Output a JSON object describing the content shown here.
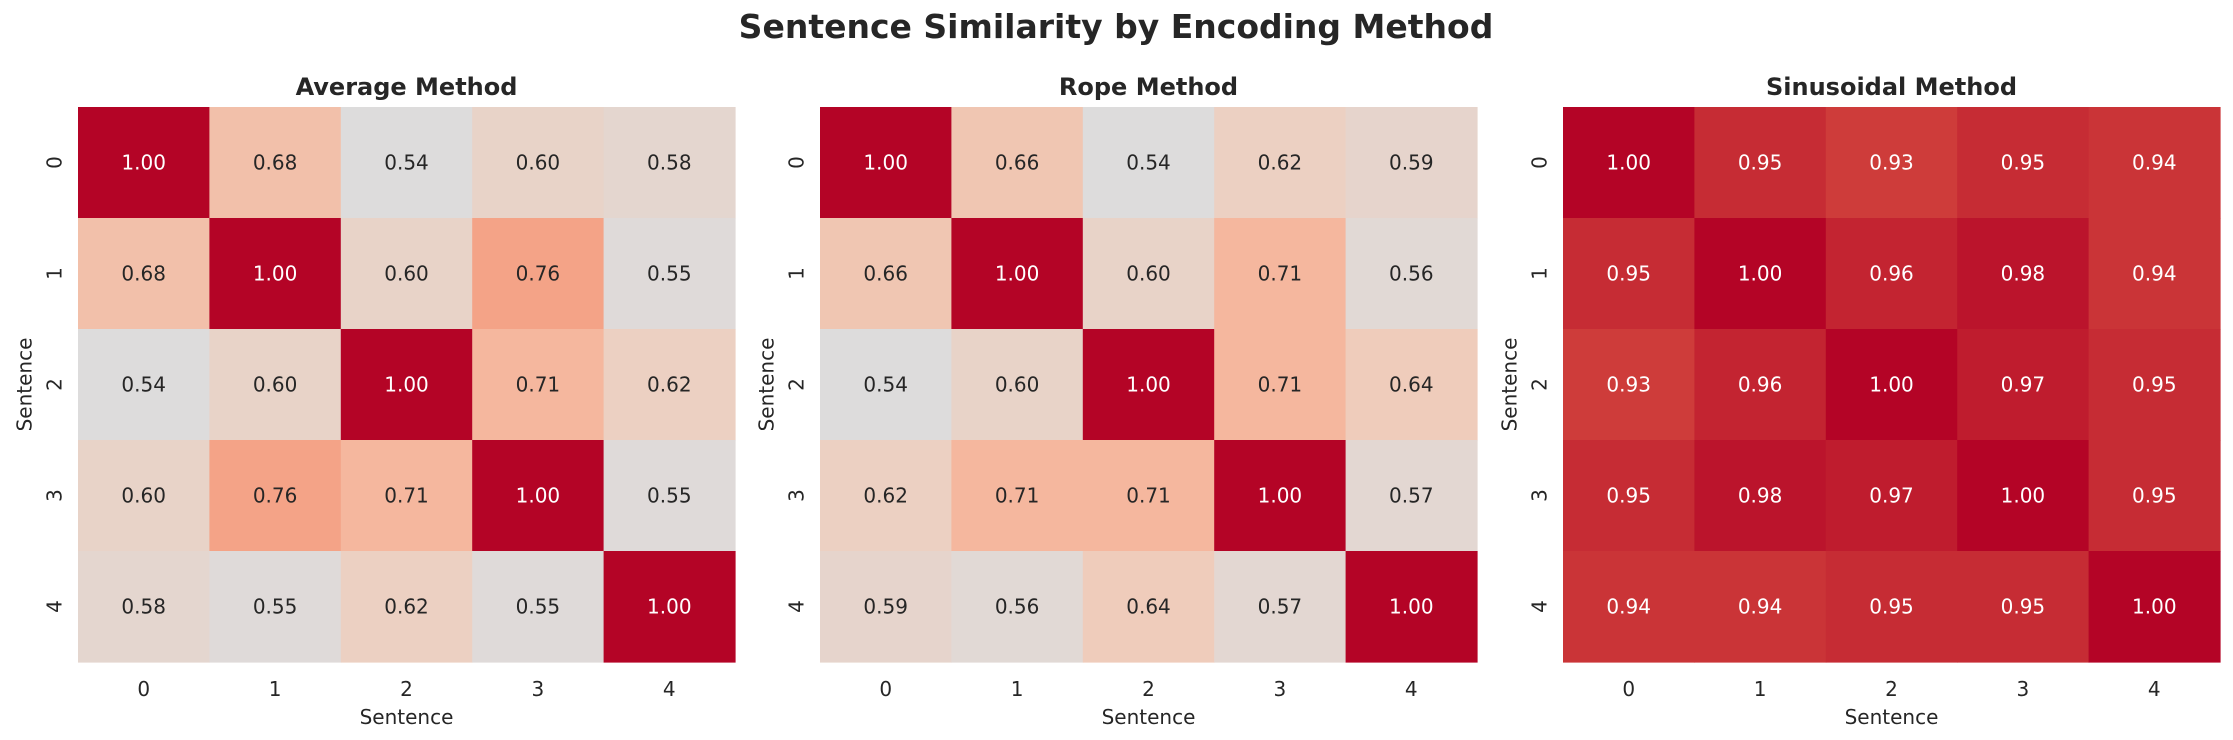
{
  "figure": {
    "title": "Sentence Similarity by Encoding Method"
  },
  "chart_data": [
    {
      "type": "heatmap",
      "title": "Average Method",
      "xlabel": "Sentence",
      "ylabel": "Sentence",
      "x_ticks": [
        "0",
        "1",
        "2",
        "3",
        "4"
      ],
      "y_ticks": [
        "0",
        "1",
        "2",
        "3",
        "4"
      ],
      "colormap": "coolwarm",
      "value_format": "0.00",
      "values": [
        [
          1.0,
          0.68,
          0.54,
          0.6,
          0.58
        ],
        [
          0.68,
          1.0,
          0.6,
          0.76,
          0.55
        ],
        [
          0.54,
          0.6,
          1.0,
          0.71,
          0.62
        ],
        [
          0.6,
          0.76,
          0.71,
          1.0,
          0.55
        ],
        [
          0.58,
          0.55,
          0.62,
          0.55,
          1.0
        ]
      ]
    },
    {
      "type": "heatmap",
      "title": "Rope Method",
      "xlabel": "Sentence",
      "ylabel": "Sentence",
      "x_ticks": [
        "0",
        "1",
        "2",
        "3",
        "4"
      ],
      "y_ticks": [
        "0",
        "1",
        "2",
        "3",
        "4"
      ],
      "colormap": "coolwarm",
      "value_format": "0.00",
      "values": [
        [
          1.0,
          0.66,
          0.54,
          0.62,
          0.59
        ],
        [
          0.66,
          1.0,
          0.6,
          0.71,
          0.56
        ],
        [
          0.54,
          0.6,
          1.0,
          0.71,
          0.64
        ],
        [
          0.62,
          0.71,
          0.71,
          1.0,
          0.57
        ],
        [
          0.59,
          0.56,
          0.64,
          0.57,
          1.0
        ]
      ]
    },
    {
      "type": "heatmap",
      "title": "Sinusoidal Method",
      "xlabel": "Sentence",
      "ylabel": "Sentence",
      "x_ticks": [
        "0",
        "1",
        "2",
        "3",
        "4"
      ],
      "y_ticks": [
        "0",
        "1",
        "2",
        "3",
        "4"
      ],
      "colormap": "coolwarm",
      "value_format": "0.00",
      "values": [
        [
          1.0,
          0.95,
          0.93,
          0.95,
          0.94
        ],
        [
          0.95,
          1.0,
          0.96,
          0.98,
          0.94
        ],
        [
          0.93,
          0.96,
          1.0,
          0.97,
          0.95
        ],
        [
          0.95,
          0.98,
          0.97,
          1.0,
          0.95
        ],
        [
          0.94,
          0.94,
          0.95,
          0.95,
          1.0
        ]
      ]
    }
  ]
}
